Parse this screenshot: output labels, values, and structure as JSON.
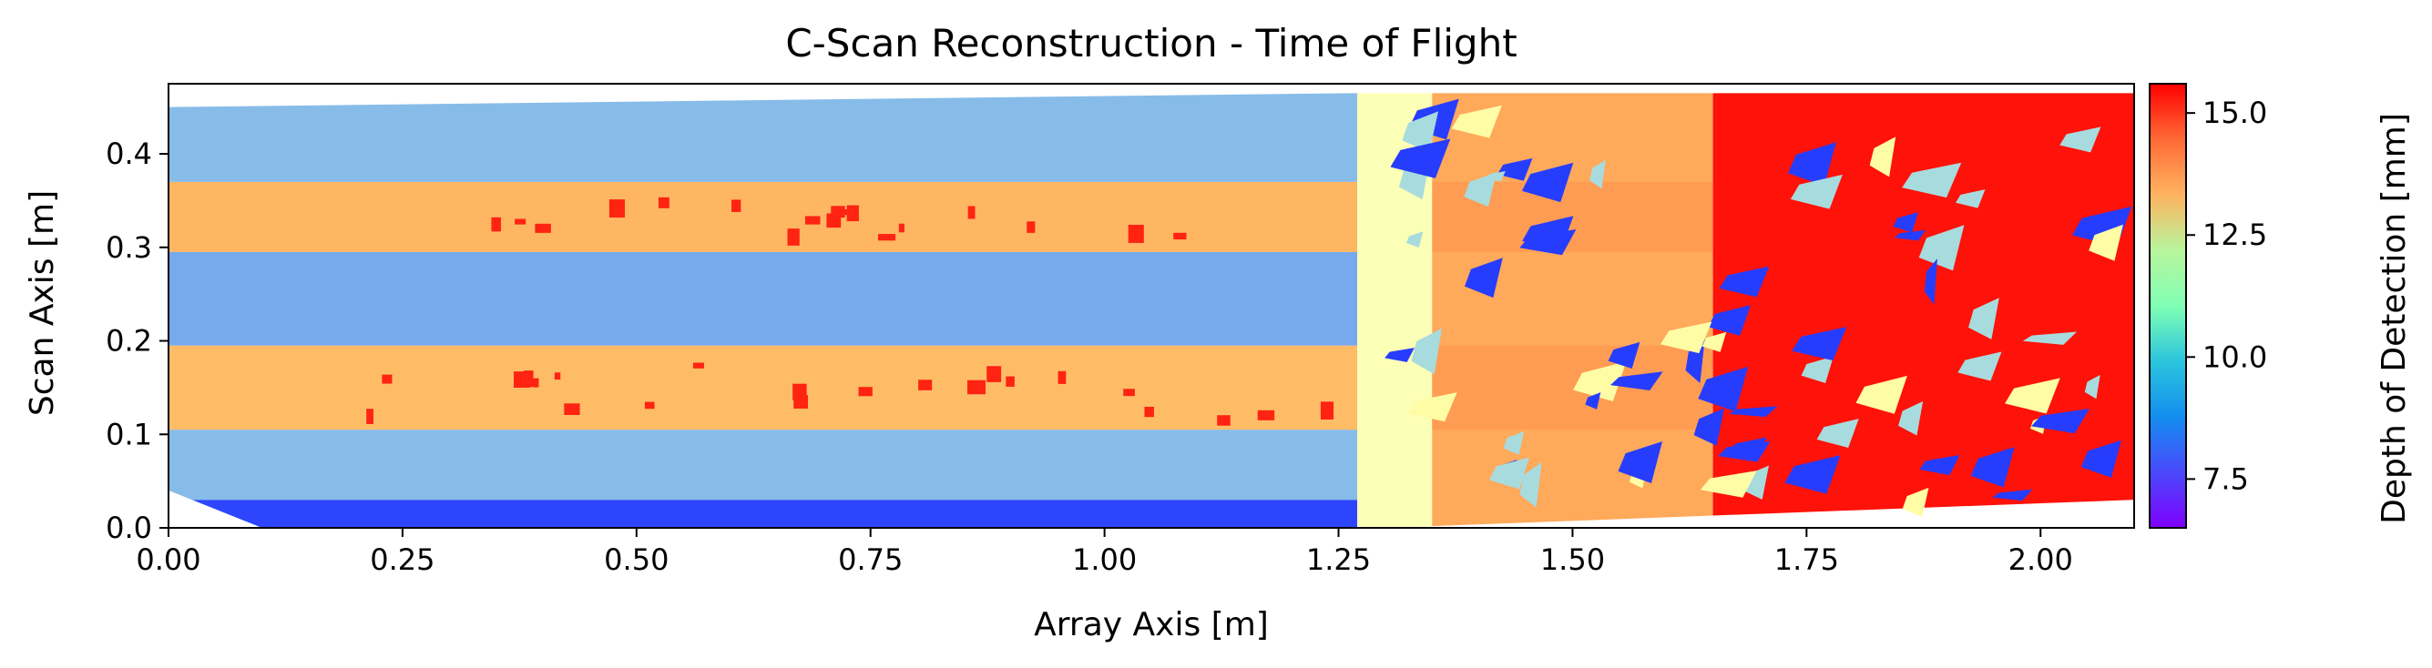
{
  "chart_data": {
    "type": "heatmap",
    "title": "C-Scan Reconstruction - Time of Flight",
    "xlabel": "Array Axis [m]",
    "ylabel": "Scan Axis [m]",
    "xlim": [
      0.0,
      2.1
    ],
    "ylim": [
      0.0,
      0.475
    ],
    "xticks": [
      0.0,
      0.25,
      0.5,
      0.75,
      1.0,
      1.25,
      1.5,
      1.75,
      2.0
    ],
    "xtick_labels": [
      "0.00",
      "0.25",
      "0.50",
      "0.75",
      "1.00",
      "1.25",
      "1.50",
      "1.75",
      "2.00"
    ],
    "yticks": [
      0.0,
      0.1,
      0.2,
      0.3,
      0.4
    ],
    "ytick_labels": [
      "0.0",
      "0.1",
      "0.2",
      "0.3",
      "0.4"
    ],
    "colorbar": {
      "label": "Depth of Detection [mm]",
      "colormap": "rainbow",
      "range": [
        6.5,
        15.6
      ],
      "ticks": [
        7.5,
        10.0,
        12.5,
        15.0
      ],
      "tick_labels": [
        "7.5",
        "10.0",
        "12.5",
        "15.0"
      ]
    },
    "bands": [
      {
        "y": [
          0.0,
          0.03
        ],
        "depth_mm": 7.3
      },
      {
        "y": [
          0.03,
          0.105
        ],
        "depth_mm": 8.9
      },
      {
        "y": [
          0.105,
          0.195
        ],
        "depth_mm": 13.2
      },
      {
        "y": [
          0.195,
          0.295
        ],
        "depth_mm": 8.6
      },
      {
        "y": [
          0.295,
          0.37
        ],
        "depth_mm": 13.3
      },
      {
        "y": [
          0.37,
          0.465
        ],
        "depth_mm": 8.9
      }
    ],
    "array_zones": [
      {
        "x": [
          0.0,
          1.27
        ],
        "pattern": "layered"
      },
      {
        "x": [
          1.27,
          1.35
        ],
        "depth_mm": 11.0
      },
      {
        "x": [
          1.35,
          1.65
        ],
        "depth_mm": 13.5
      },
      {
        "x": [
          1.65,
          2.1
        ],
        "depth_mm": 15.4
      }
    ],
    "grid": false
  }
}
